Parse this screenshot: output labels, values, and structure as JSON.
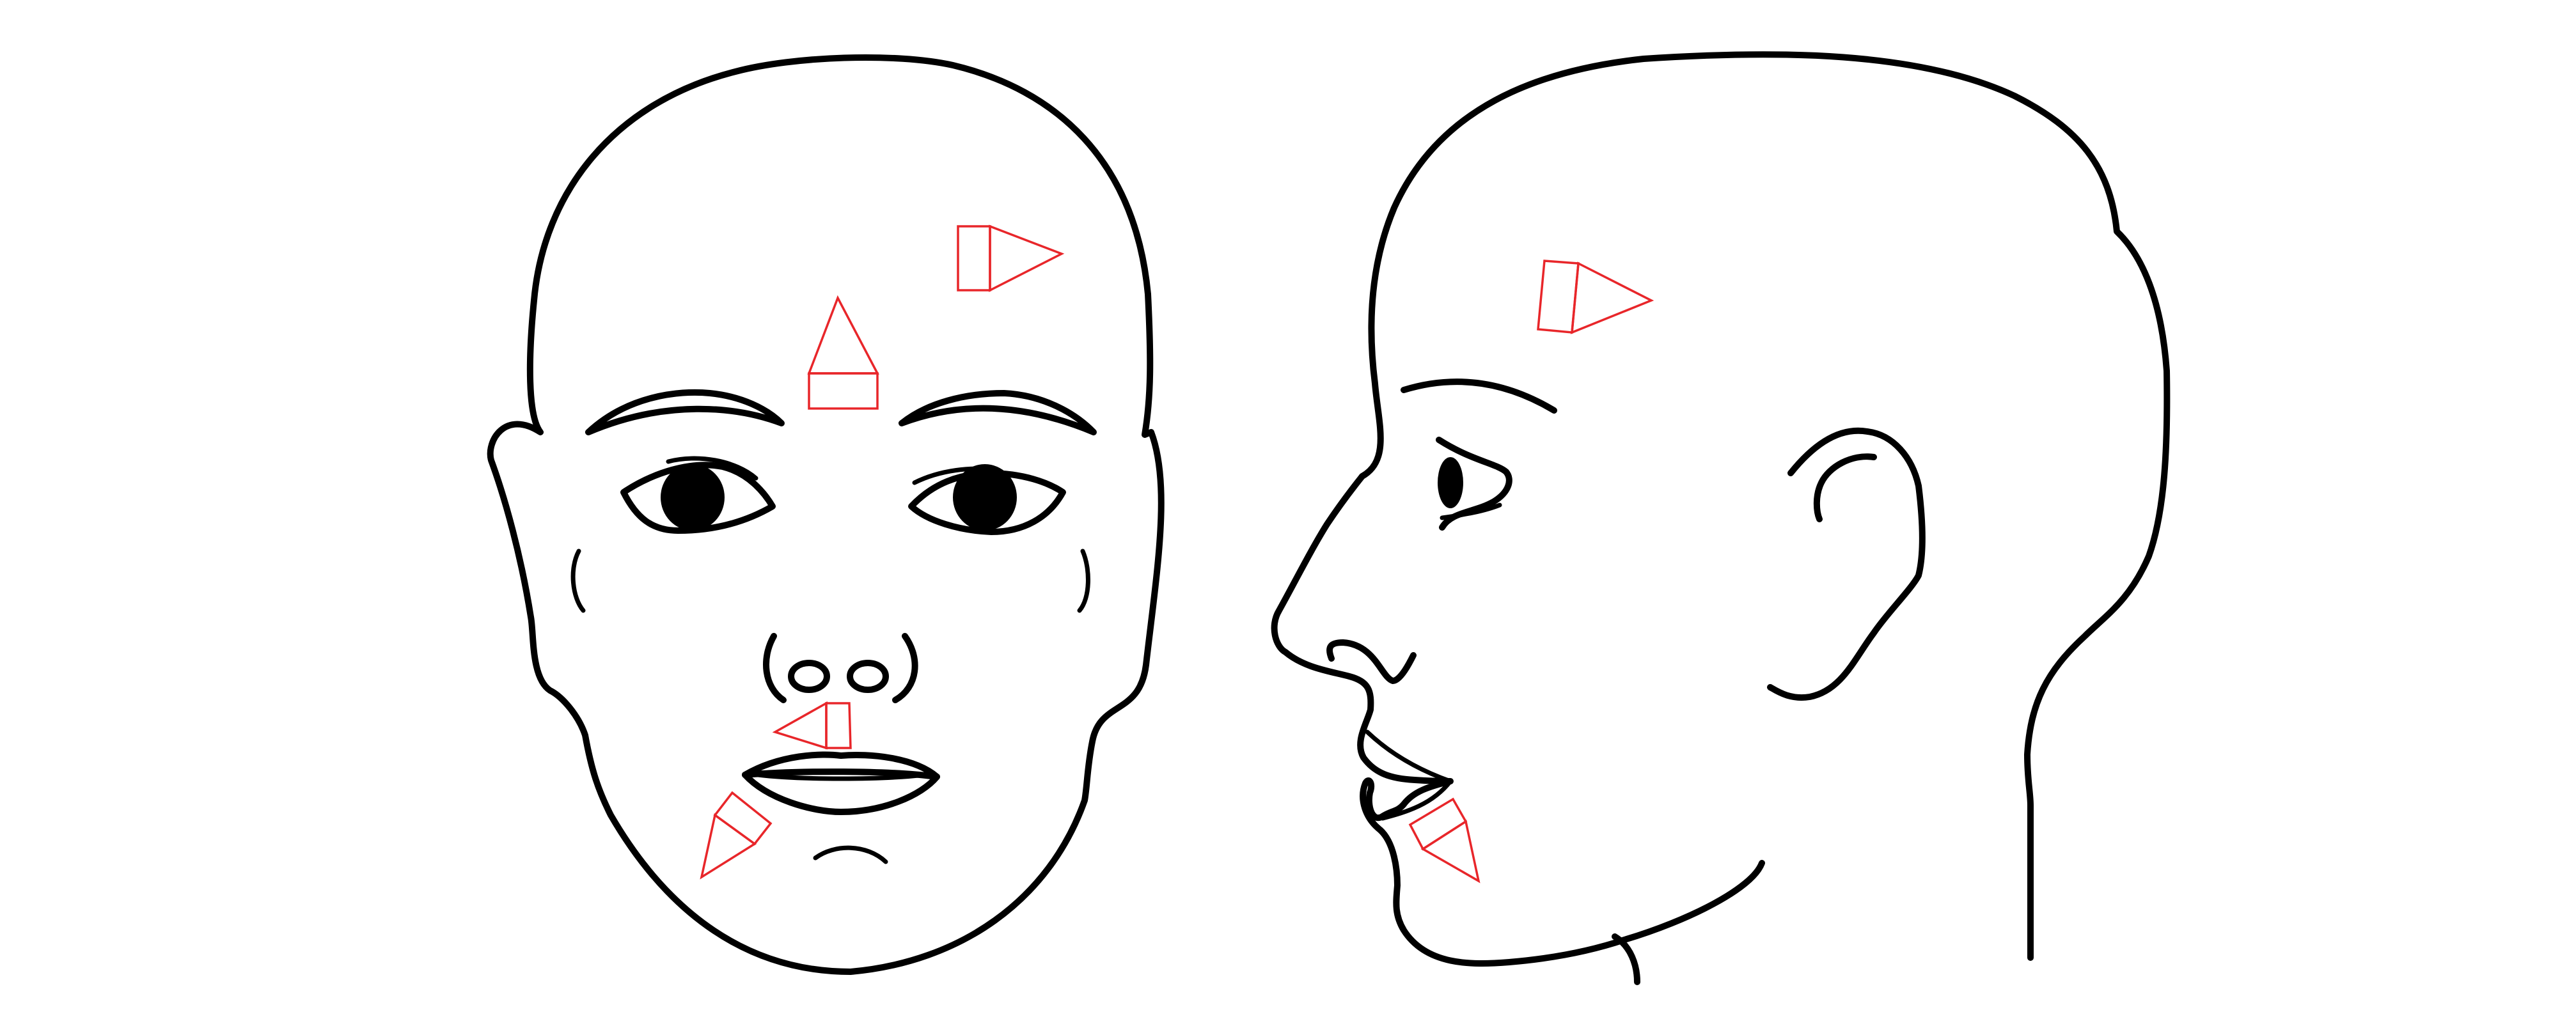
{
  "colors": {
    "background": "#ffffff",
    "outline": "#000000",
    "marker": "#e8262a"
  },
  "figures": [
    {
      "name": "front-view-face"
    },
    {
      "name": "side-view-profile"
    }
  ],
  "markers": [
    {
      "view": "front",
      "region": "forehead-left",
      "shape": "triangle-on-rectangle",
      "direction": "up"
    },
    {
      "view": "front",
      "region": "forehead-right",
      "shape": "rectangle-with-triangle",
      "direction": "right"
    },
    {
      "view": "front",
      "region": "upper-lip",
      "shape": "rectangle-with-triangle",
      "direction": "left"
    },
    {
      "view": "front",
      "region": "chin-left",
      "shape": "rectangle-with-triangle",
      "direction": "down-left"
    },
    {
      "view": "side",
      "region": "forehead",
      "shape": "rectangle-with-triangle",
      "direction": "right"
    },
    {
      "view": "side",
      "region": "chin",
      "shape": "rectangle-with-triangle",
      "direction": "down"
    }
  ]
}
